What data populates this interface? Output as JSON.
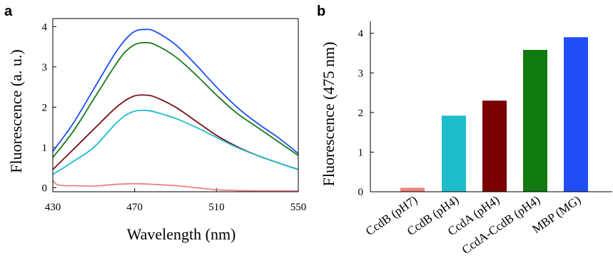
{
  "chart_data": [
    {
      "panel": "a",
      "type": "line",
      "xlabel": "Wavelength (nm)",
      "ylabel": "Fluorescence (a. u.)",
      "xlim": [
        430,
        550
      ],
      "ylim": [
        -0.1,
        4.2
      ],
      "xticks": [
        430,
        470,
        510,
        550
      ],
      "yticks": [
        0,
        1,
        2,
        3,
        4
      ],
      "grid": false,
      "legend": "none",
      "series": [
        {
          "color": "#1f4ef5",
          "x": [
            430,
            440,
            450,
            460,
            465,
            470,
            475,
            480,
            490,
            500,
            510,
            520,
            530,
            540,
            550
          ],
          "y": [
            0.9,
            1.6,
            2.45,
            3.3,
            3.65,
            3.88,
            3.93,
            3.88,
            3.55,
            3.05,
            2.5,
            2.0,
            1.6,
            1.25,
            0.85
          ]
        },
        {
          "color": "#1a7a1a",
          "x": [
            430,
            440,
            450,
            460,
            465,
            470,
            475,
            480,
            490,
            500,
            510,
            520,
            530,
            540,
            550
          ],
          "y": [
            0.75,
            1.4,
            2.2,
            3.0,
            3.35,
            3.55,
            3.6,
            3.55,
            3.25,
            2.8,
            2.3,
            1.85,
            1.5,
            1.15,
            0.8
          ]
        },
        {
          "color": "#7a0f12",
          "x": [
            430,
            440,
            450,
            460,
            465,
            470,
            475,
            480,
            490,
            500,
            510,
            520,
            530,
            540,
            550
          ],
          "y": [
            0.45,
            0.95,
            1.45,
            1.95,
            2.15,
            2.28,
            2.3,
            2.25,
            2.0,
            1.65,
            1.3,
            1.02,
            0.8,
            0.62,
            0.45
          ]
        },
        {
          "color": "#1fbccb",
          "x": [
            430,
            440,
            450,
            460,
            465,
            470,
            475,
            480,
            490,
            500,
            510,
            520,
            530,
            540,
            550
          ],
          "y": [
            0.33,
            0.65,
            1.0,
            1.55,
            1.78,
            1.9,
            1.92,
            1.88,
            1.72,
            1.5,
            1.25,
            1.0,
            0.8,
            0.62,
            0.45
          ]
        },
        {
          "color": "#f08080",
          "x": [
            430,
            432,
            436,
            440,
            450,
            460,
            470,
            480,
            490,
            500,
            510,
            520,
            530,
            540,
            550
          ],
          "y": [
            0.18,
            0.08,
            0.05,
            0.05,
            0.04,
            0.08,
            0.1,
            0.08,
            0.05,
            0.0,
            -0.05,
            -0.07,
            -0.08,
            -0.08,
            -0.08
          ]
        }
      ]
    },
    {
      "panel": "b",
      "type": "bar",
      "ylabel": "Fluorescence (475 nm)",
      "ylim": [
        0,
        4.3
      ],
      "yticks": [
        0,
        1,
        2,
        3,
        4
      ],
      "grid": false,
      "legend": "none",
      "categories": [
        "CcdB (pH7)",
        "CcdB (pH4)",
        "CcdA (pH4)",
        "CcdA-CcdB (pH4)",
        "MBP (MG)"
      ],
      "values": [
        0.1,
        1.92,
        2.3,
        3.58,
        3.9
      ],
      "colors": [
        "#f08080",
        "#1fbccb",
        "#7a0000",
        "#117a11",
        "#1f4ef5"
      ]
    }
  ],
  "panel_labels": [
    "a",
    "b"
  ]
}
